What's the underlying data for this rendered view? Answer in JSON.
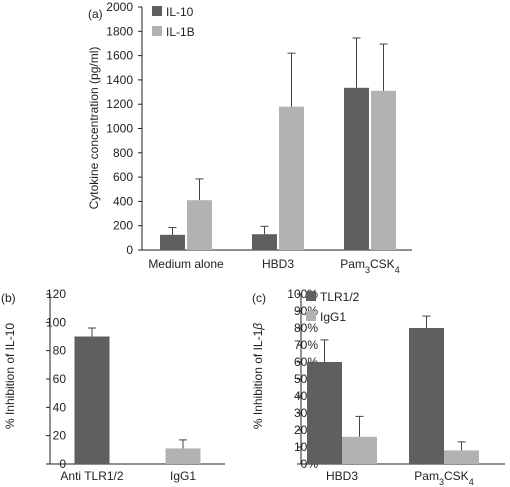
{
  "chart_data": [
    {
      "type": "bar",
      "panel": "(a)",
      "ylabel": "Cytokine concentration (pg/ml)",
      "ylim": [
        0,
        2000
      ],
      "yticks": [
        "0",
        "200",
        "400",
        "600",
        "800",
        "1000",
        "1200",
        "1400",
        "1600",
        "1800",
        "2000"
      ],
      "categories": [
        {
          "text": "Medium alone",
          "sub": ""
        },
        {
          "text": "HBD3",
          "sub": ""
        },
        {
          "text": "Pam",
          "sub": "3",
          "text2": "CSK",
          "sub2": "4"
        }
      ],
      "legend": "top-left",
      "series": [
        {
          "name": "IL-10",
          "color": "#5f5f5f",
          "values": [
            125,
            130,
            1335
          ],
          "errors": [
            60,
            65,
            410
          ]
        },
        {
          "name": "IL-1B",
          "color": "#b2b2b2",
          "values": [
            410,
            1180,
            1310
          ],
          "errors": [
            175,
            440,
            385
          ]
        }
      ]
    },
    {
      "type": "bar",
      "panel": "(b)",
      "ylabel": "% Inhibition of IL-10",
      "ylim": [
        0,
        120
      ],
      "yticks": [
        "0",
        "20",
        "40",
        "60",
        "80",
        "100",
        "120"
      ],
      "categories": [
        {
          "text": "Anti TLR1/2",
          "sub": ""
        },
        {
          "text": "IgG1",
          "sub": ""
        }
      ],
      "series": [
        {
          "name": "",
          "colors": [
            "#5f5f5f",
            "#b2b2b2"
          ],
          "values": [
            90,
            11
          ],
          "errors": [
            6,
            6
          ]
        }
      ]
    },
    {
      "type": "bar",
      "panel": "(c)",
      "ylabel": "% Inhibition of IL-1",
      "ylabel_greek": "β",
      "ylim": [
        0,
        100
      ],
      "yticks": [
        "0%",
        "10%",
        "20%",
        "30%",
        "40%",
        "50%",
        "60%",
        "70%",
        "80%",
        "90%",
        "100%"
      ],
      "categories": [
        {
          "text": "HBD3",
          "sub": ""
        },
        {
          "text": "Pam",
          "sub": "3",
          "text2": "CSK",
          "sub2": "4"
        }
      ],
      "legend": "top-left",
      "series": [
        {
          "name": "TLR1/2",
          "color": "#5f5f5f",
          "values": [
            60,
            80
          ],
          "errors": [
            13,
            7
          ]
        },
        {
          "name": "IgG1",
          "color": "#b2b2b2",
          "values": [
            16,
            8
          ],
          "errors": [
            12,
            5
          ]
        }
      ]
    }
  ]
}
